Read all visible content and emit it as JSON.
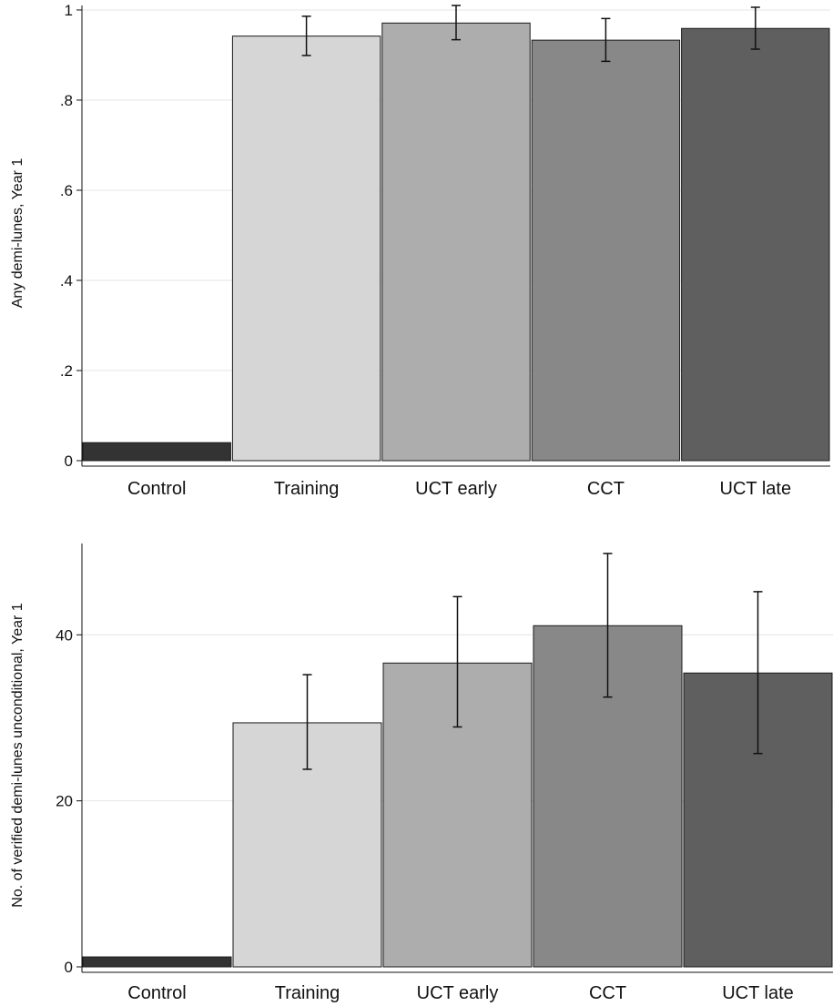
{
  "chart_data": [
    {
      "type": "bar",
      "title": "",
      "xlabel": "",
      "ylabel": "Any demi-lunes, Year 1",
      "categories": [
        "Control",
        "Training",
        "UCT early",
        "CCT",
        "UCT late"
      ],
      "values": [
        0.04,
        0.942,
        0.971,
        0.933,
        0.959
      ],
      "error_low": [
        null,
        0.899,
        0.934,
        0.886,
        0.913
      ],
      "error_high": [
        null,
        0.986,
        1.01,
        0.981,
        1.006
      ],
      "ylim": [
        0,
        1.01
      ],
      "yticks": [
        0,
        0.2,
        0.4,
        0.6,
        0.8,
        1
      ],
      "ytick_labels": [
        "0",
        ".2",
        ".4",
        ".6",
        ".8",
        "1"
      ],
      "colors": [
        "#333333",
        "#d6d6d6",
        "#adadad",
        "#888888",
        "#5f5f5f"
      ],
      "grid": true,
      "legend": "none"
    },
    {
      "type": "bar",
      "title": "",
      "xlabel": "",
      "ylabel": "No. of verified demi-lunes unconditional, Year 1",
      "categories": [
        "Control",
        "Training",
        "UCT early",
        "CCT",
        "UCT late"
      ],
      "values": [
        1.2,
        29.4,
        36.6,
        41.1,
        35.4
      ],
      "error_low": [
        null,
        23.8,
        28.9,
        32.5,
        25.7
      ],
      "error_high": [
        null,
        35.2,
        44.6,
        49.8,
        45.2
      ],
      "ylim": [
        0,
        51
      ],
      "yticks": [
        0,
        20,
        40
      ],
      "ytick_labels": [
        "0",
        "20",
        "40"
      ],
      "colors": [
        "#333333",
        "#d6d6d6",
        "#adadad",
        "#888888",
        "#5f5f5f"
      ],
      "grid": true,
      "legend": "none"
    }
  ]
}
